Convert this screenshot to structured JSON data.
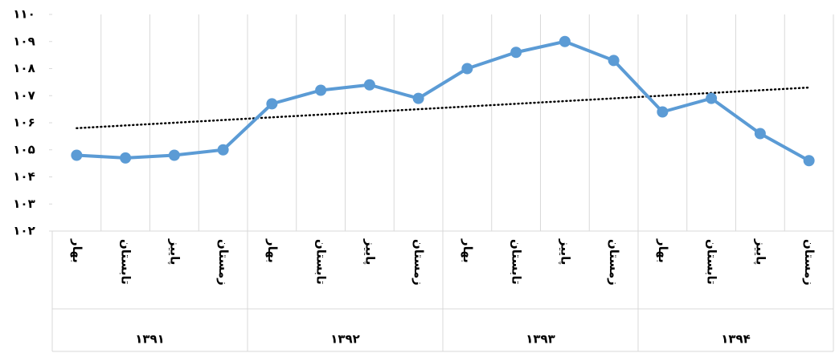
{
  "chart_data": {
    "type": "line",
    "categories": [
      "بهار",
      "تابستان",
      "پاییز",
      "زمستان",
      "بهار",
      "تابستان",
      "پاییز",
      "زمستان",
      "بهار",
      "تابستان",
      "پاییز",
      "زمستان",
      "بهار",
      "تابستان",
      "پاییز",
      "زمستان"
    ],
    "groups": [
      "۱۳۹۱",
      "۱۳۹۲",
      "۱۳۹۳",
      "۱۳۹۴"
    ],
    "values": [
      104.8,
      104.7,
      104.8,
      105.0,
      106.7,
      107.2,
      107.4,
      106.9,
      108.0,
      108.6,
      109.0,
      108.3,
      106.4,
      106.9,
      105.6,
      104.6
    ],
    "color": "#5b9bd5",
    "trendline": [
      105.8,
      107.3
    ],
    "ylim": [
      102,
      110
    ],
    "yticks": [
      {
        "value": 102,
        "label": "۱۰۲"
      },
      {
        "value": 103,
        "label": "۱۰۳"
      },
      {
        "value": 104,
        "label": "۱۰۴"
      },
      {
        "value": 105,
        "label": "۱۰۵"
      },
      {
        "value": 106,
        "label": "۱۰۶"
      },
      {
        "value": 107,
        "label": "۱۰۷"
      },
      {
        "value": 108,
        "label": "۱۰۸"
      },
      {
        "value": 109,
        "label": "۱۰۹"
      },
      {
        "value": 110,
        "label": "۱۱۰"
      }
    ],
    "grid": true
  }
}
